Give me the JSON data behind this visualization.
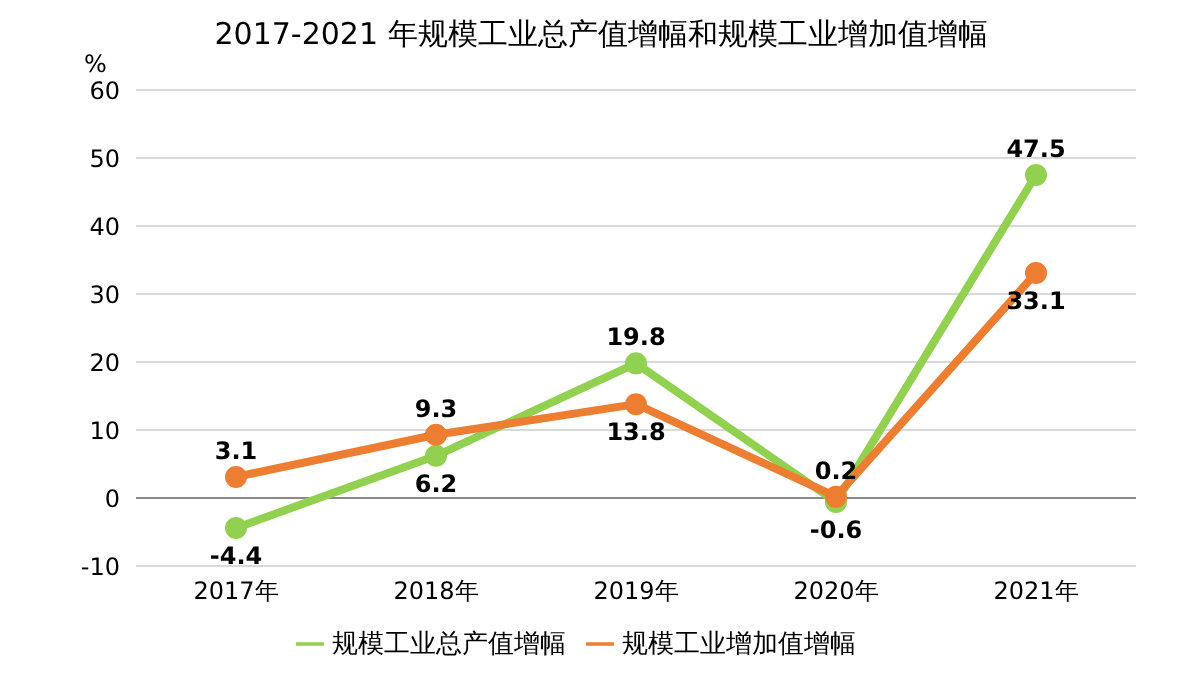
{
  "chart_data": {
    "type": "line",
    "title": "2017-2021 年规模工业总产值增幅和规模工业增加值增幅",
    "ylabel": "%",
    "categories": [
      "2017年",
      "2018年",
      "2019年",
      "2020年",
      "2021年"
    ],
    "series": [
      {
        "name": "规模工业总产值增幅",
        "color": "#92d050",
        "values": [
          -4.4,
          6.2,
          19.8,
          -0.6,
          47.5
        ]
      },
      {
        "name": "规模工业增加值增幅",
        "color": "#ed7d31",
        "values": [
          3.1,
          9.3,
          13.8,
          0.2,
          33.1
        ]
      }
    ],
    "ylim": [
      -10,
      60
    ],
    "yticks": [
      -10,
      0,
      10,
      20,
      30,
      40,
      50,
      60
    ],
    "grid": "y",
    "legend": "bottom",
    "data_labels": true,
    "marker": "circle",
    "line_style": "solid"
  }
}
